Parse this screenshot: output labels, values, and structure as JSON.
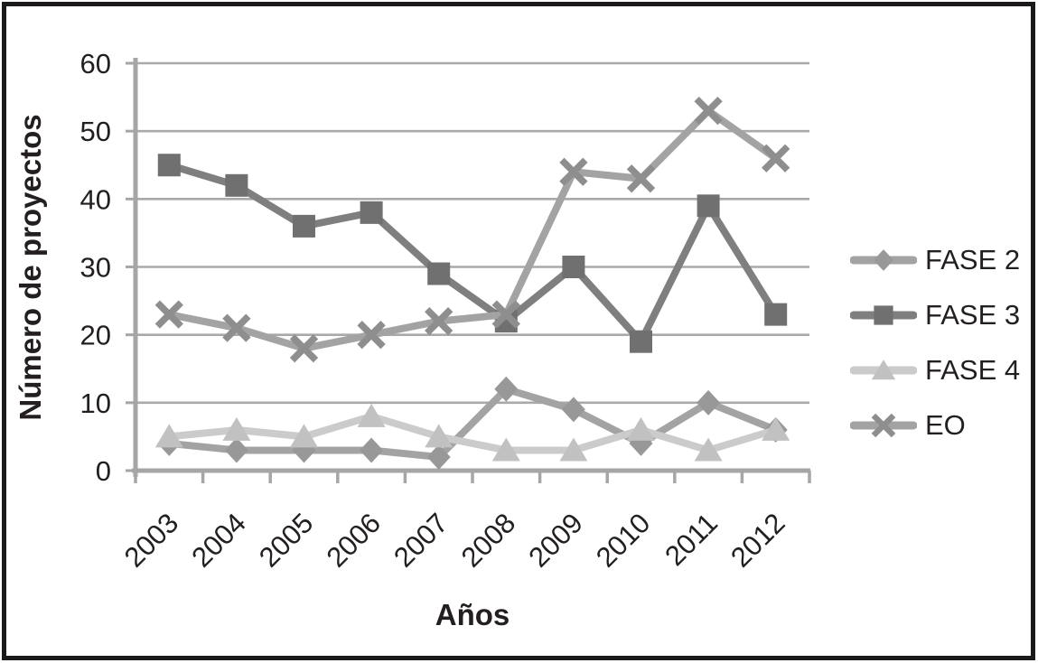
{
  "figure": {
    "background": "#ffffff",
    "border_color": "#1c191a",
    "text_color": "#231f20",
    "axis_color": "#a6a6a6",
    "gridline_color": "#a9a9a9"
  },
  "chart_data": {
    "type": "line",
    "title": "",
    "xlabel": "Años",
    "ylabel": "Número de proyectos",
    "categories": [
      "2003",
      "2004",
      "2005",
      "2006",
      "2007",
      "2008",
      "2009",
      "2010",
      "2011",
      "2012"
    ],
    "yticks": [
      0,
      10,
      20,
      30,
      40,
      50,
      60
    ],
    "ylim": [
      0,
      60
    ],
    "grid": "horizontal",
    "legend_position": "right",
    "series": [
      {
        "name": "FASE 2",
        "marker": "diamond",
        "line_color": "#a3a3a3",
        "marker_color": "#989898",
        "values": [
          4,
          3,
          3,
          3,
          2,
          12,
          9,
          4,
          10,
          6
        ]
      },
      {
        "name": "FASE 3",
        "marker": "square",
        "line_color": "#7f7f7f",
        "marker_color": "#707070",
        "values": [
          45,
          42,
          36,
          38,
          29,
          22,
          30,
          19,
          39,
          23
        ]
      },
      {
        "name": "FASE 4",
        "marker": "triangle",
        "line_color": "#cbcbcb",
        "marker_color": "#c1c1c1",
        "values": [
          5,
          6,
          5,
          8,
          5,
          3,
          3,
          6,
          3,
          6
        ]
      },
      {
        "name": "EO",
        "marker": "x",
        "line_color": "#a3a3a3",
        "marker_color": "#8e8e8e",
        "values": [
          23,
          21,
          18,
          20,
          22,
          23,
          44,
          43,
          53,
          46
        ]
      }
    ]
  }
}
